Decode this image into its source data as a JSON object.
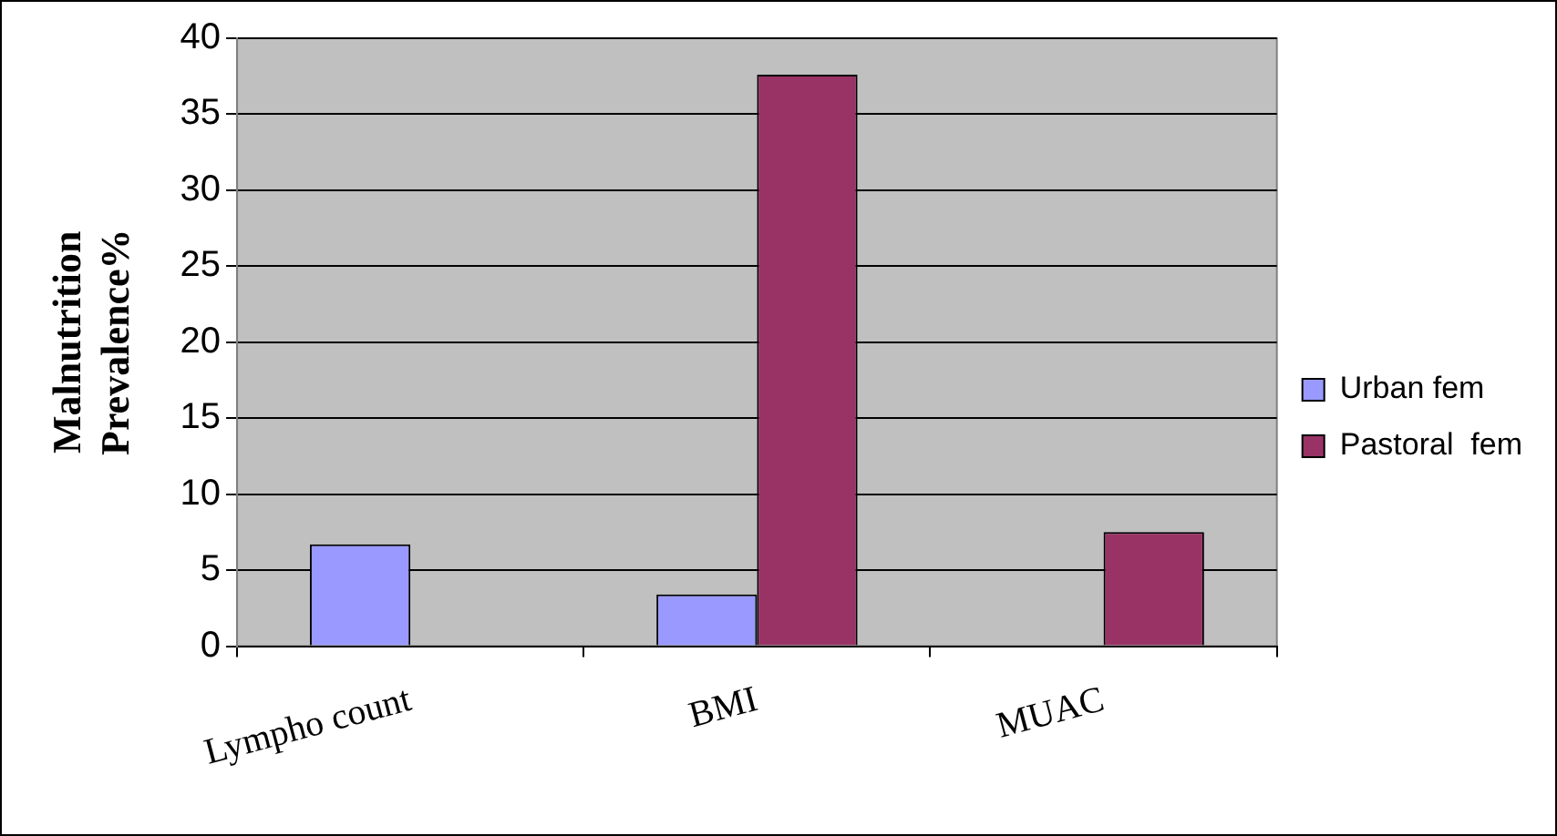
{
  "chart_data": {
    "type": "bar",
    "ylabel": "Malnutrition Prevalence%",
    "categories": [
      "Lympho count",
      "BMI",
      "MUAC"
    ],
    "series": [
      {
        "name": "Urban fem",
        "color": "#9999ff",
        "values": [
          6.7,
          3.4,
          null
        ]
      },
      {
        "name": "Pastoral  fem",
        "color": "#993366",
        "values": [
          null,
          37.6,
          7.5
        ]
      }
    ],
    "ylim": [
      0,
      40
    ],
    "yticks": [
      0,
      5,
      10,
      15,
      20,
      25,
      30,
      35,
      40
    ],
    "grid": "y",
    "legend": "right"
  }
}
